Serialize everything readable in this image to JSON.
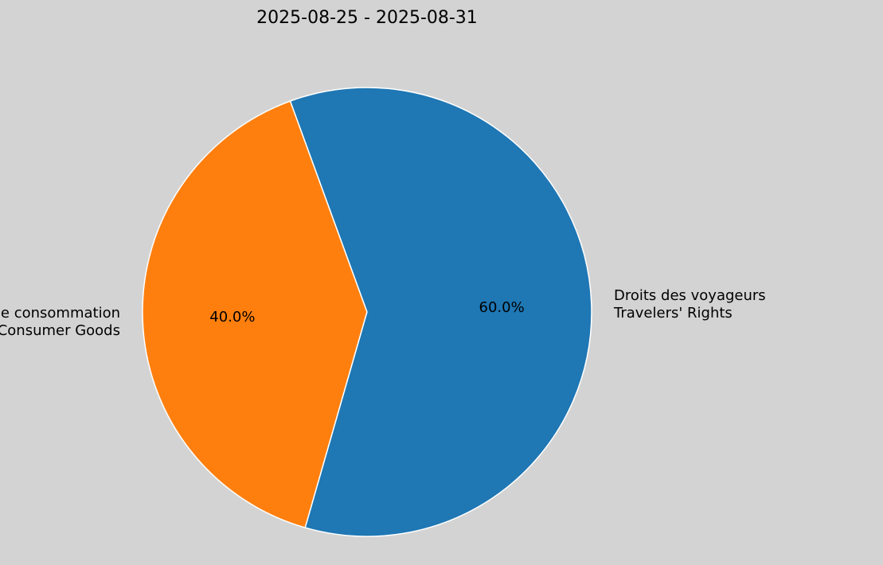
{
  "chart_data": {
    "type": "pie",
    "title": "2025-08-25 - 2025-08-31",
    "slices": [
      {
        "label_fr": "Garantie sur les biens de consommation",
        "label_en": "Warranty on Consumer Goods",
        "value": 40.0,
        "pct_label": "40.0%",
        "color": "#ff7f0e"
      },
      {
        "label_fr": "Droits des voyageurs",
        "label_en": "Travelers' Rights",
        "value": 60.0,
        "pct_label": "60.0%",
        "color": "#1f77b4"
      }
    ],
    "background": "#d3d3d3",
    "edge_color": "#ffffff"
  }
}
